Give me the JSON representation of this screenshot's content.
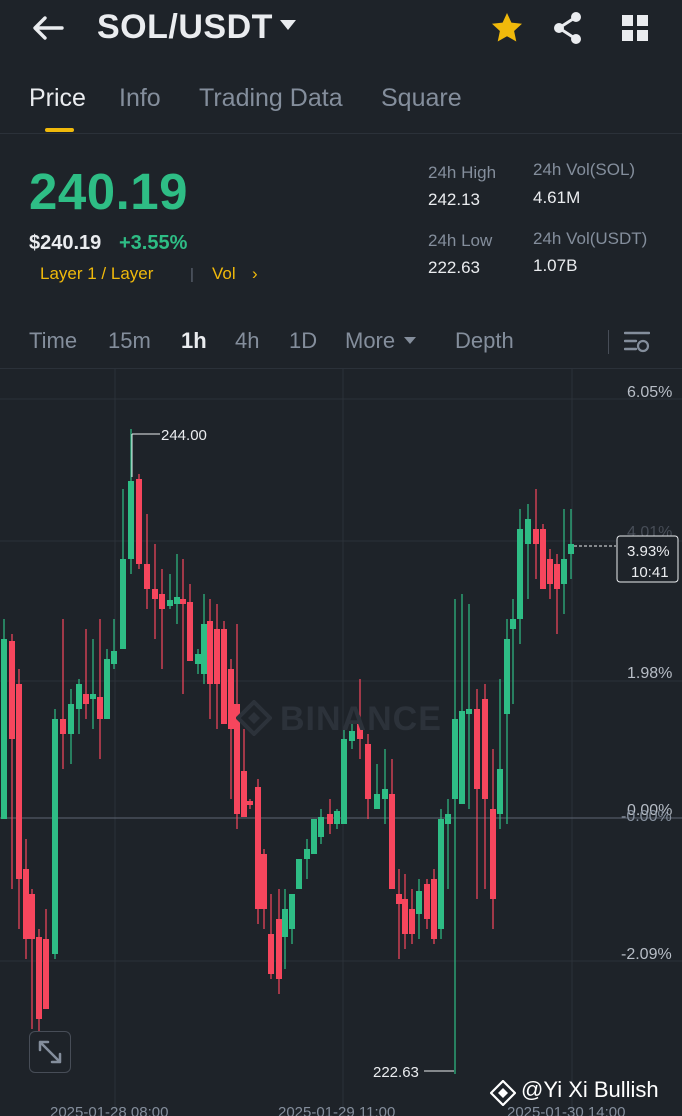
{
  "header": {
    "pair": "SOL/USDT",
    "icons": [
      "back-arrow-icon",
      "caret-down-icon",
      "star-icon",
      "share-icon",
      "grid-icon"
    ],
    "star_color": "#f0b90b"
  },
  "tabs": [
    {
      "label": "Price",
      "active": true
    },
    {
      "label": "Info"
    },
    {
      "label": "Trading Data"
    },
    {
      "label": "Square"
    }
  ],
  "ticker": {
    "last_price": "240.19",
    "usd_price": "$240.19",
    "change_pct": "+3.55%",
    "tag_layer": "Layer 1 / Layer",
    "tag_sep": "|",
    "tag_vol": "Vol",
    "tag_chevron": "›",
    "high_label": "24h High",
    "high_value": "242.13",
    "low_label": "24h Low",
    "low_value": "222.63",
    "vol_sol_label": "24h Vol(SOL)",
    "vol_sol_value": "4.61M",
    "vol_usdt_label": "24h Vol(USDT)",
    "vol_usdt_value": "1.07B"
  },
  "intervals": {
    "time": "Time",
    "m15": "15m",
    "h1": "1h",
    "h4": "4h",
    "d1": "1D",
    "more": "More",
    "depth": "Depth",
    "active": "1h"
  },
  "chart": {
    "y_labels": [
      "6.05%",
      "1.98%",
      "0.00%",
      "-2.09%"
    ],
    "y_label_overlap": [
      "4.01%",
      "-0.00%"
    ],
    "max_marker": "244.00",
    "min_marker": "222.63",
    "current_pct": "3.93%",
    "current_countdown": "10:41",
    "watermark": "BINANCE",
    "x_labels": [
      "2025-01-28 08:00",
      "2025-01-29 11:00",
      "2025-01-30 14:00"
    ],
    "up_color": "#2ebd85",
    "down_color": "#f6465d"
  },
  "attribution": "@Yi Xi Bullish",
  "colors": {
    "background": "#1e2329",
    "accent": "#f0b90b",
    "positive": "#2ebd85",
    "negative": "#f6465d",
    "muted": "#848e9c"
  }
}
